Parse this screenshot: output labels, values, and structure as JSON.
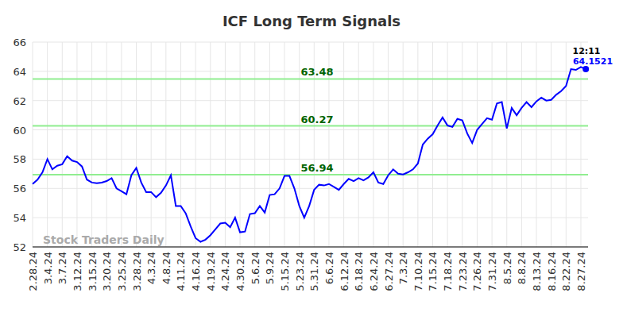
{
  "chart_data": {
    "type": "line",
    "title": "ICF Long Term Signals",
    "categories": [
      "2.28.24",
      null,
      null,
      "3.4.24",
      null,
      null,
      "3.7.24",
      null,
      null,
      "3.12.24",
      null,
      null,
      "3.15.24",
      null,
      null,
      "3.20.24",
      null,
      null,
      "3.25.24",
      null,
      null,
      "3.28.24",
      null,
      null,
      "4.3.24",
      null,
      null,
      "4.8.24",
      null,
      null,
      "4.11.24",
      null,
      null,
      "4.16.24",
      null,
      null,
      "4.19.24",
      null,
      null,
      "4.24.24",
      null,
      null,
      "4.30.24",
      null,
      null,
      "5.6.24",
      null,
      null,
      "5.9.24",
      null,
      null,
      "5.15.24",
      null,
      null,
      "5.23.24",
      null,
      null,
      "5.31.24",
      null,
      null,
      "6.6.24",
      null,
      null,
      "6.12.24",
      null,
      null,
      "6.18.24",
      null,
      null,
      "6.24.24",
      null,
      null,
      "6.27.24",
      null,
      null,
      "7.3.24",
      null,
      null,
      "7.10.24",
      null,
      null,
      "7.15.24",
      null,
      null,
      "7.18.24",
      null,
      null,
      "7.23.24",
      null,
      null,
      "7.26.24",
      null,
      null,
      "7.31.24",
      null,
      null,
      "8.5.24",
      null,
      null,
      "8.8.24",
      null,
      null,
      "8.13.24",
      null,
      null,
      "8.16.24",
      null,
      null,
      "8.22.24",
      null,
      null,
      "8.27.24",
      null
    ],
    "series": [
      {
        "name": "ICF",
        "color": "#0000ff",
        "values": [
          56.3,
          56.6,
          57.1,
          58.0,
          57.3,
          57.55,
          57.65,
          58.2,
          57.9,
          57.8,
          57.5,
          56.6,
          56.4,
          56.35,
          56.4,
          56.5,
          56.7,
          56.0,
          55.8,
          55.6,
          56.9,
          57.4,
          56.4,
          55.75,
          55.75,
          55.4,
          55.7,
          56.2,
          56.9,
          54.8,
          54.8,
          54.3,
          53.4,
          52.6,
          52.35,
          52.5,
          52.8,
          53.2,
          53.6,
          53.65,
          53.35,
          54.0,
          53.0,
          53.05,
          54.25,
          54.3,
          54.8,
          54.35,
          55.55,
          55.6,
          56.0,
          56.85,
          56.85,
          56.0,
          54.8,
          54.0,
          54.8,
          55.9,
          56.25,
          56.2,
          56.3,
          56.1,
          55.9,
          56.3,
          56.65,
          56.5,
          56.7,
          56.55,
          56.75,
          57.1,
          56.4,
          56.3,
          56.9,
          57.3,
          57.0,
          56.95,
          57.1,
          57.3,
          57.7,
          59.0,
          59.4,
          59.7,
          60.3,
          60.85,
          60.3,
          60.2,
          60.75,
          60.65,
          59.75,
          59.1,
          60.0,
          60.4,
          60.8,
          60.7,
          61.8,
          61.9,
          60.1,
          61.5,
          61.0,
          61.5,
          61.9,
          61.55,
          61.95,
          62.2,
          62.0,
          62.05,
          62.4,
          62.65,
          63.0,
          64.15,
          64.1,
          64.3,
          64.1521
        ]
      }
    ],
    "signal_lines": [
      63.48,
      60.27,
      56.94
    ],
    "signal_color": "#90ee90",
    "signal_label_color": "#006400",
    "last_time": "12:11",
    "watermark": "Stock Traders Daily",
    "ylim": [
      52,
      66
    ],
    "yticks": [
      52,
      54,
      56,
      58,
      60,
      62,
      64,
      66
    ],
    "grid": true
  }
}
